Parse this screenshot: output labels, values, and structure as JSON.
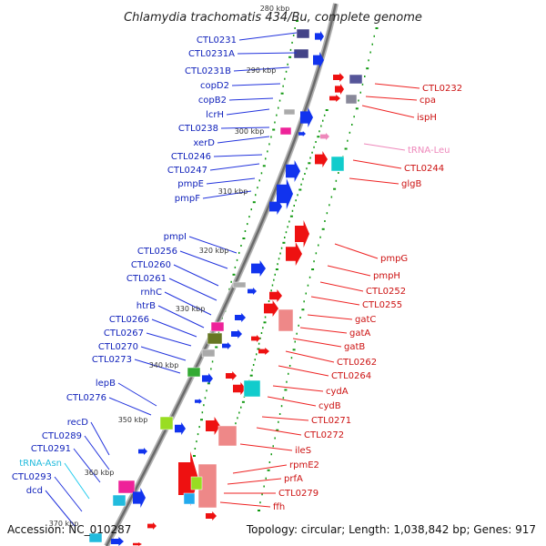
{
  "title": "Chlamydia trachomatis 434/Bu, complete genome",
  "footer": {
    "accession": "Accession: NC_010287",
    "summary": "Topology: circular; Length: 1,038,842 bp; Genes: 917"
  },
  "kbp_labels": [
    "280 kbp",
    "290 kbp",
    "300 kbp",
    "310 kbp",
    "320 kbp",
    "330 kbp",
    "340 kbp",
    "350 kbp",
    "360 kbp",
    "370 kbp"
  ],
  "left_labels": [
    "CTL0231",
    "CTL0231A",
    "CTL0231B",
    "copD2",
    "copB2",
    "lcrH",
    "CTL0238",
    "xerD",
    "CTL0246",
    "CTL0247",
    "pmpE",
    "pmpF",
    "pmpI",
    "CTL0256",
    "CTL0260",
    "CTL0261",
    "rnhC",
    "htrB",
    "CTL0266",
    "CTL0267",
    "CTL0270",
    "CTL0273",
    "lepB",
    "CTL0276",
    "recD",
    "CTL0289",
    "CTL0291",
    "tRNA-Asn",
    "CTL0293",
    "dcd"
  ],
  "right_labels": [
    "CTL0232",
    "cpa",
    "ispH",
    "tRNA-Leu",
    "CTL0244",
    "glgB",
    "pmpG",
    "pmpH",
    "CTL0252",
    "CTL0255",
    "gatC",
    "gatA",
    "gatB",
    "CTL0262",
    "CTL0264",
    "cydA",
    "cydB",
    "CTL0271",
    "CTL0272",
    "ileS",
    "rpmE2",
    "prfA",
    "CTL0279",
    "ffh"
  ],
  "colors": {
    "forward_cds": "#ee1111",
    "reverse_cds": "#1133ee",
    "trna_forward": "#ee88bb",
    "trna_reverse": "#22bbdd",
    "backbone": "#888888",
    "gc_skew": "#119911"
  }
}
